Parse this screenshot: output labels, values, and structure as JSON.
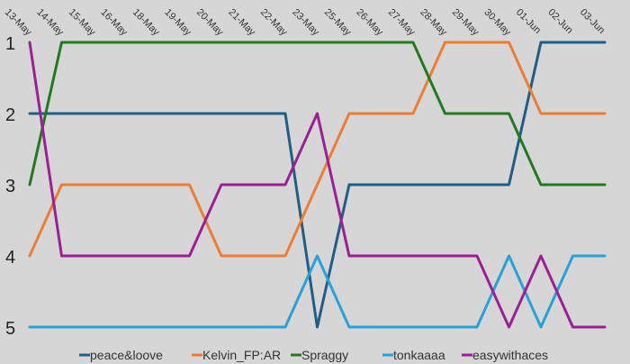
{
  "chart_data": {
    "type": "line",
    "title": "",
    "xlabel": "",
    "ylabel": "",
    "x": [
      "13-May",
      "14-May",
      "15-May",
      "16-May",
      "18-May",
      "19-May",
      "20-May",
      "21-May",
      "22-May",
      "23-May",
      "25-May",
      "26-May",
      "27-May",
      "28-May",
      "29-May",
      "30-May",
      "01-Jun",
      "02-Jun",
      "03-Jun"
    ],
    "ylim": [
      5,
      1
    ],
    "y_ticks": [
      "1",
      "2",
      "3",
      "4",
      "5"
    ],
    "inverted_y": true,
    "grid": false,
    "legend_position": "bottom",
    "series": [
      {
        "name": "peace&loove",
        "color": "#1f5e86",
        "values": [
          2,
          2,
          2,
          2,
          2,
          2,
          2,
          2,
          2,
          5,
          3,
          3,
          3,
          3,
          3,
          3,
          1,
          1,
          1
        ]
      },
      {
        "name": "Kelvin_FP:AR",
        "color": "#ee7d31",
        "values": [
          4,
          3,
          3,
          3,
          3,
          3,
          4,
          4,
          4,
          3,
          2,
          2,
          2,
          1,
          1,
          1,
          2,
          2,
          2
        ]
      },
      {
        "name": "Spraggy",
        "color": "#217a1f",
        "values": [
          3,
          1,
          1,
          1,
          1,
          1,
          1,
          1,
          1,
          1,
          1,
          1,
          1,
          2,
          2,
          2,
          3,
          3,
          3
        ]
      },
      {
        "name": "tonkaaaa",
        "color": "#26a2d8",
        "values": [
          5,
          5,
          5,
          5,
          5,
          5,
          5,
          5,
          5,
          4,
          5,
          5,
          5,
          5,
          5,
          4,
          5,
          4,
          4
        ]
      },
      {
        "name": "easywithaces",
        "color": "#9c1f96",
        "values": [
          1,
          4,
          4,
          4,
          4,
          4,
          3,
          3,
          3,
          2,
          4,
          4,
          4,
          4,
          4,
          5,
          4,
          5,
          5
        ]
      }
    ]
  }
}
